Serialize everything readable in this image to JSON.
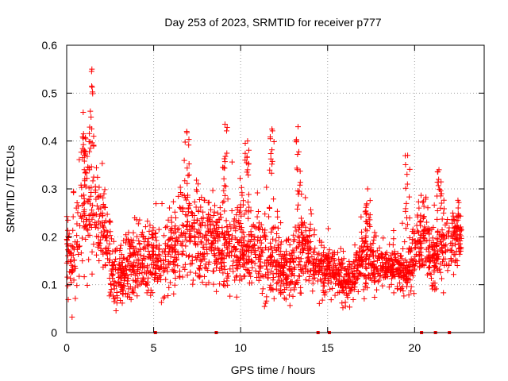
{
  "chart_data": {
    "type": "scatter",
    "title": "Day 253 of 2023, SRMTID for receiver p777",
    "xlabel": "GPS time / hours",
    "ylabel": "SRMTID / TECUs",
    "xlim": [
      0,
      24
    ],
    "ylim": [
      0,
      0.6
    ],
    "grid": true,
    "marker": "+",
    "marker_color": "#ff0000",
    "x_ticks": [
      0,
      5,
      10,
      15,
      20
    ],
    "x_tick_labels": [
      "0",
      "5",
      "10",
      "15",
      "20"
    ],
    "y_ticks": [
      0,
      0.1,
      0.2,
      0.3,
      0.4,
      0.5,
      0.6
    ],
    "y_tick_labels": [
      "0",
      "0.1",
      "0.2",
      "0.3",
      "0.4",
      "0.5",
      "0.6"
    ],
    "envelope": {
      "x": [
        0.0,
        0.3,
        0.6,
        0.9,
        1.2,
        1.5,
        1.8,
        2.1,
        2.4,
        2.7,
        3.0,
        3.5,
        4.0,
        4.5,
        5.0,
        5.5,
        6.0,
        6.5,
        7.0,
        7.5,
        8.0,
        8.5,
        9.0,
        9.5,
        10.0,
        10.5,
        11.0,
        11.5,
        12.0,
        12.5,
        13.0,
        13.5,
        14.0,
        14.5,
        15.0,
        15.5,
        16.0,
        16.5,
        17.0,
        17.5,
        18.0,
        18.5,
        19.0,
        19.5,
        20.0,
        20.5,
        21.0,
        21.5,
        22.0,
        22.5,
        22.7
      ],
      "center": [
        0.17,
        0.15,
        0.2,
        0.27,
        0.25,
        0.28,
        0.22,
        0.21,
        0.17,
        0.12,
        0.11,
        0.13,
        0.15,
        0.15,
        0.16,
        0.14,
        0.17,
        0.19,
        0.2,
        0.2,
        0.19,
        0.19,
        0.18,
        0.18,
        0.19,
        0.17,
        0.17,
        0.16,
        0.15,
        0.13,
        0.13,
        0.19,
        0.16,
        0.14,
        0.13,
        0.12,
        0.11,
        0.11,
        0.16,
        0.14,
        0.14,
        0.14,
        0.13,
        0.12,
        0.16,
        0.2,
        0.15,
        0.18,
        0.17,
        0.2,
        0.23
      ],
      "spread": [
        0.08,
        0.09,
        0.1,
        0.1,
        0.12,
        0.13,
        0.1,
        0.08,
        0.08,
        0.05,
        0.05,
        0.06,
        0.07,
        0.07,
        0.07,
        0.07,
        0.07,
        0.09,
        0.09,
        0.08,
        0.08,
        0.07,
        0.08,
        0.08,
        0.08,
        0.07,
        0.08,
        0.08,
        0.08,
        0.06,
        0.06,
        0.09,
        0.06,
        0.05,
        0.05,
        0.04,
        0.04,
        0.04,
        0.07,
        0.05,
        0.04,
        0.04,
        0.04,
        0.04,
        0.07,
        0.07,
        0.06,
        0.07,
        0.06,
        0.06,
        0.06
      ],
      "peaks": [
        {
          "x": 1.45,
          "y": 0.55
        },
        {
          "x": 0.95,
          "y": 0.46
        },
        {
          "x": 6.9,
          "y": 0.42
        },
        {
          "x": 9.1,
          "y": 0.435
        },
        {
          "x": 10.4,
          "y": 0.4
        },
        {
          "x": 11.8,
          "y": 0.425
        },
        {
          "x": 13.3,
          "y": 0.43
        },
        {
          "x": 17.3,
          "y": 0.3
        },
        {
          "x": 19.6,
          "y": 0.37
        },
        {
          "x": 21.4,
          "y": 0.34
        }
      ]
    },
    "point_count": 2400,
    "zero_markers_x": [
      5.1,
      8.6,
      14.45,
      15.1,
      20.4,
      21.2,
      22.0
    ]
  }
}
